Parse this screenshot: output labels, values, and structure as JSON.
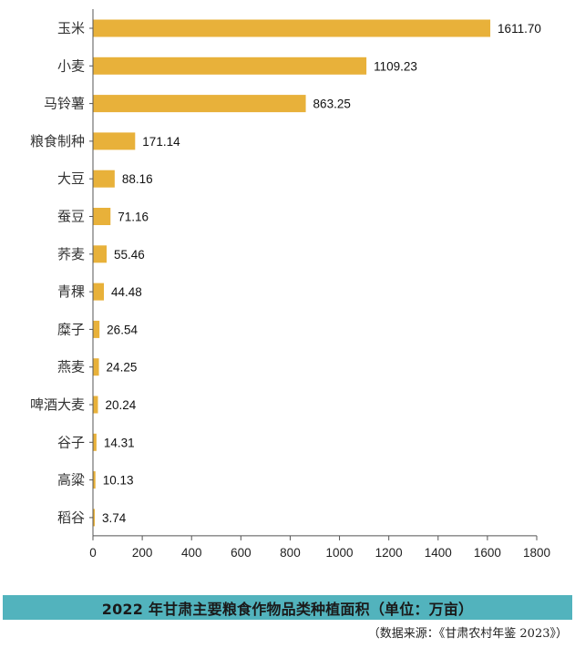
{
  "chart_data": {
    "type": "bar",
    "orientation": "horizontal",
    "categories": [
      "玉米",
      "小麦",
      "马铃薯",
      "粮食制种",
      "大豆",
      "蚕豆",
      "荞麦",
      "青稞",
      "糜子",
      "燕麦",
      "啤酒大麦",
      "谷子",
      "高粱",
      "稻谷"
    ],
    "values": [
      1611.7,
      1109.23,
      863.25,
      171.14,
      88.16,
      71.16,
      55.46,
      44.48,
      26.54,
      24.25,
      20.24,
      14.31,
      10.13,
      3.74
    ],
    "value_labels": [
      "1611.70",
      "1109.23",
      "863.25",
      "171.14",
      "88.16",
      "71.16",
      "55.46",
      "44.48",
      "26.54",
      "24.25",
      "20.24",
      "14.31",
      "10.13",
      "3.74"
    ],
    "xlim": [
      0,
      1800
    ],
    "xticks": [
      "0",
      "200",
      "400",
      "600",
      "800",
      "1000",
      "1200",
      "1400",
      "1600",
      "1800"
    ],
    "grid": false,
    "bar_color": "#e8b13a",
    "title": "2022 年甘肃主要粮食作物品类种植面积（单位：万亩）"
  },
  "footer": {
    "source": "（数据来源：《甘肃农村年鉴 2023》）",
    "title_bg_color": "#52b3bd"
  }
}
